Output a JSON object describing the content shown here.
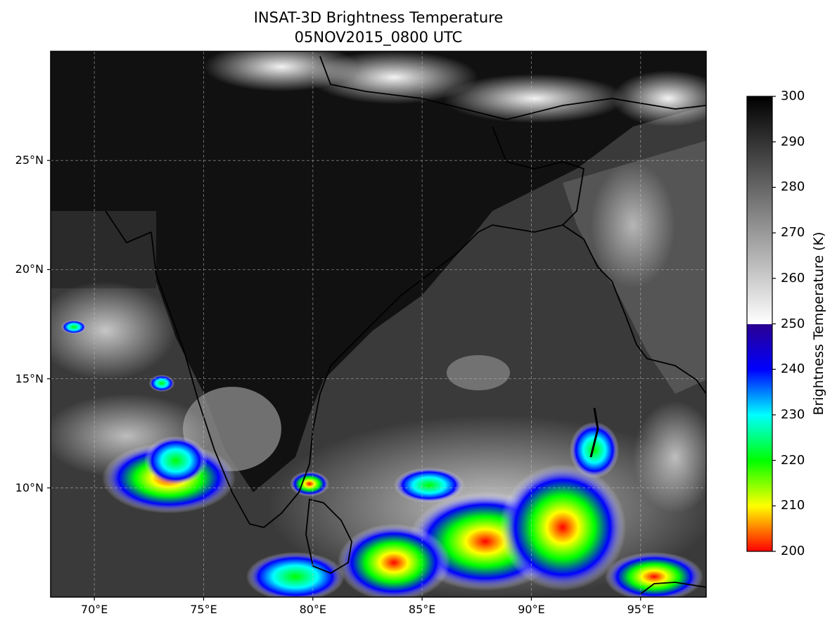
{
  "map": {
    "title_line1": "INSAT-3D Brightness Temperature",
    "title_line2": "05NOV2015_0800 UTC",
    "lat_ticks": [
      {
        "value": 25,
        "label": "25°N"
      },
      {
        "value": 20,
        "label": "20°N"
      },
      {
        "value": 15,
        "label": "15°N"
      },
      {
        "value": 10,
        "label": "10°N"
      }
    ],
    "lon_ticks": [
      {
        "value": 70,
        "label": "70°E"
      },
      {
        "value": 75,
        "label": "75°E"
      },
      {
        "value": 80,
        "label": "80°E"
      },
      {
        "value": 85,
        "label": "85°E"
      },
      {
        "value": 90,
        "label": "90°E"
      },
      {
        "value": 95,
        "label": "95°E"
      }
    ],
    "extent": {
      "lon": [
        68,
        98
      ],
      "lat": [
        5,
        30
      ]
    },
    "gridlines": true
  },
  "colorbar": {
    "label": "Brightness Temperature (K)",
    "range": [
      200,
      300
    ],
    "ticks": [
      {
        "value": 300,
        "label": "300"
      },
      {
        "value": 290,
        "label": "290"
      },
      {
        "value": 280,
        "label": "280"
      },
      {
        "value": 270,
        "label": "270"
      },
      {
        "value": 260,
        "label": "260"
      },
      {
        "value": 250,
        "label": "250"
      },
      {
        "value": 240,
        "label": "240"
      },
      {
        "value": 230,
        "label": "230"
      },
      {
        "value": 220,
        "label": "220"
      },
      {
        "value": 210,
        "label": "210"
      },
      {
        "value": 200,
        "label": "200"
      }
    ],
    "colors": {
      "grey_top": "#000000",
      "grey_bottom": "#ffffff",
      "c250": "#2a0090",
      "c240": "#0000ff",
      "c230": "#00ffff",
      "c220": "#00ff00",
      "c210": "#ffff00",
      "c200": "#ff0000"
    }
  }
}
